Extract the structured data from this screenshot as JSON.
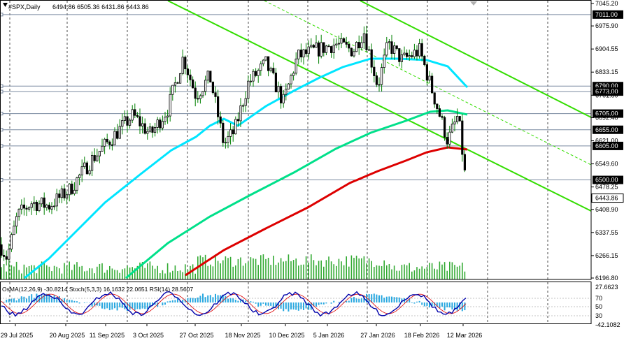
{
  "header": {
    "symbol": "#SPX,Daily",
    "ohlc": "6494.86 6505.36 6431.86 6443.86"
  },
  "indicator_caption": "OsMA(12,26,9) -30.8214  Stoch(5,3,3) 16.1632 22.0651  RSI(14) 28.5607",
  "colors": {
    "background": "#ffffff",
    "candle": "#008000",
    "ema_fast": "#00e5ff",
    "ema_mid": "#00e08a",
    "ema_slow": "#dd0000",
    "channel": "#33dd00",
    "volume": "#33aa33",
    "level_line": "#7a8aa0",
    "osma": "#29a8e0",
    "stoch_main": "#0000aa",
    "stoch_signal": "#dd0000",
    "price_label_bg": "#000000",
    "price_label_text": "#ffffff",
    "current_price_bg": "#ffffff"
  },
  "chart_data": {
    "type": "candlestick",
    "title": "#SPX,Daily",
    "ohlc_last": {
      "open": 6494.86,
      "high": 6505.36,
      "low": 6431.86,
      "close": 6443.86
    },
    "y_ticks": [
      "7045.20",
      "6975.90",
      "6904.55",
      "6833.15",
      "6761.80",
      "6692.40",
      "6621.00",
      "6549.60",
      "6478.25",
      "6408.90",
      "6337.55",
      "6266.15",
      "6196.80"
    ],
    "ylim": [
      6196.8,
      7045.2
    ],
    "x_labels": [
      "29 Jul 2025",
      "20 Aug 2025",
      "11 Sep 2025",
      "3 Oct 2025",
      "27 Oct 2025",
      "18 Nov 2025",
      "10 Dec 2025",
      "5 Jan 2026",
      "27 Jan 2026",
      "18 Feb 2026",
      "12 Mar 2026"
    ],
    "levels": [
      {
        "value": "7011.00",
        "price": 7011.0
      },
      {
        "value": "6790.00",
        "price": 6790.0
      },
      {
        "value": "6773.00",
        "price": 6773.0
      },
      {
        "value": "6705.00",
        "price": 6705.0
      },
      {
        "value": "6655.00",
        "price": 6655.0
      },
      {
        "value": "6605.00",
        "price": 6605.0
      },
      {
        "value": "6500.00",
        "price": 6500.0
      }
    ],
    "current_price": "6443.86",
    "lower_ticks": [
      "27.6623",
      "70",
      "50",
      "30",
      "-42.1082"
    ],
    "grid": true
  }
}
